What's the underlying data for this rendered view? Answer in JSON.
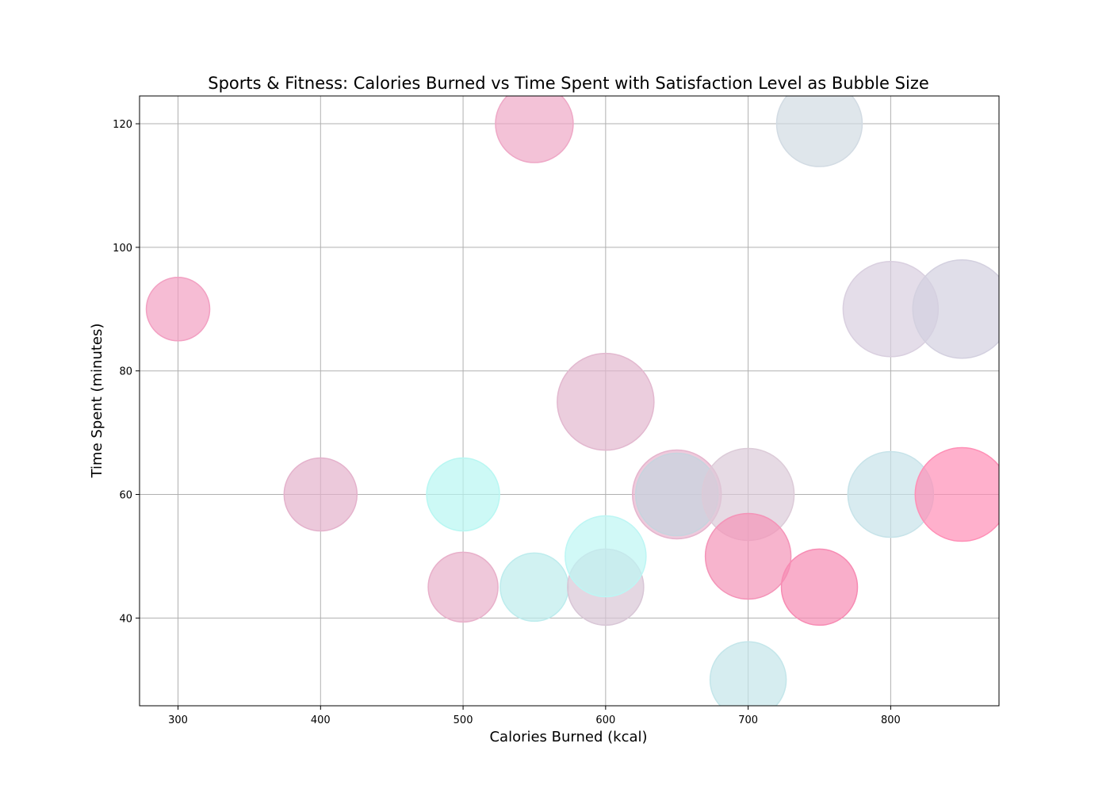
{
  "chart_data": {
    "type": "scatter",
    "title": "Sports & Fitness: Calories Burned vs Time Spent with Satisfaction Level as Bubble Size",
    "xlabel": "Calories Burned (kcal)",
    "ylabel": "Time Spent (minutes)",
    "xlim": [
      273,
      876
    ],
    "ylim": [
      25.8,
      124.5
    ],
    "xticks": [
      300,
      400,
      500,
      600,
      700,
      800
    ],
    "yticks": [
      40,
      60,
      80,
      100,
      120
    ],
    "grid": true,
    "legend": "none",
    "points": [
      {
        "x": 300,
        "y": 90,
        "size": 40,
        "color": "#f2a0c2"
      },
      {
        "x": 400,
        "y": 60,
        "size": 46,
        "color": "#e4b2cc"
      },
      {
        "x": 500,
        "y": 60,
        "size": 46,
        "color": "#b8f7f2"
      },
      {
        "x": 500,
        "y": 45,
        "size": 44,
        "color": "#e8b0ca"
      },
      {
        "x": 550,
        "y": 120,
        "size": 49,
        "color": "#eea8c6"
      },
      {
        "x": 550,
        "y": 45,
        "size": 43,
        "color": "#bdeced"
      },
      {
        "x": 600,
        "y": 75,
        "size": 61,
        "color": "#e2b8cf"
      },
      {
        "x": 600,
        "y": 45,
        "size": 48,
        "color": "#d8c6d6"
      },
      {
        "x": 600,
        "y": 50,
        "size": 51,
        "color": "#bdf6f4"
      },
      {
        "x": 650,
        "y": 60,
        "size": 56,
        "color": "#e6b4cd"
      },
      {
        "x": 650,
        "y": 60,
        "size": 52,
        "color": "#c6d4de"
      },
      {
        "x": 700,
        "y": 60,
        "size": 58,
        "color": "#dccbd8"
      },
      {
        "x": 700,
        "y": 50,
        "size": 54,
        "color": "#f494b8"
      },
      {
        "x": 700,
        "y": 30,
        "size": 48,
        "color": "#c4e6ea"
      },
      {
        "x": 750,
        "y": 120,
        "size": 54,
        "color": "#d2dbe3"
      },
      {
        "x": 750,
        "y": 45,
        "size": 48,
        "color": "#f78bb3"
      },
      {
        "x": 800,
        "y": 90,
        "size": 60,
        "color": "#d9cfdf"
      },
      {
        "x": 800,
        "y": 60,
        "size": 54,
        "color": "#c7e3e9"
      },
      {
        "x": 850,
        "y": 90,
        "size": 62,
        "color": "#d3d0df"
      },
      {
        "x": 850,
        "y": 60,
        "size": 59,
        "color": "#ff8fb6"
      }
    ]
  }
}
